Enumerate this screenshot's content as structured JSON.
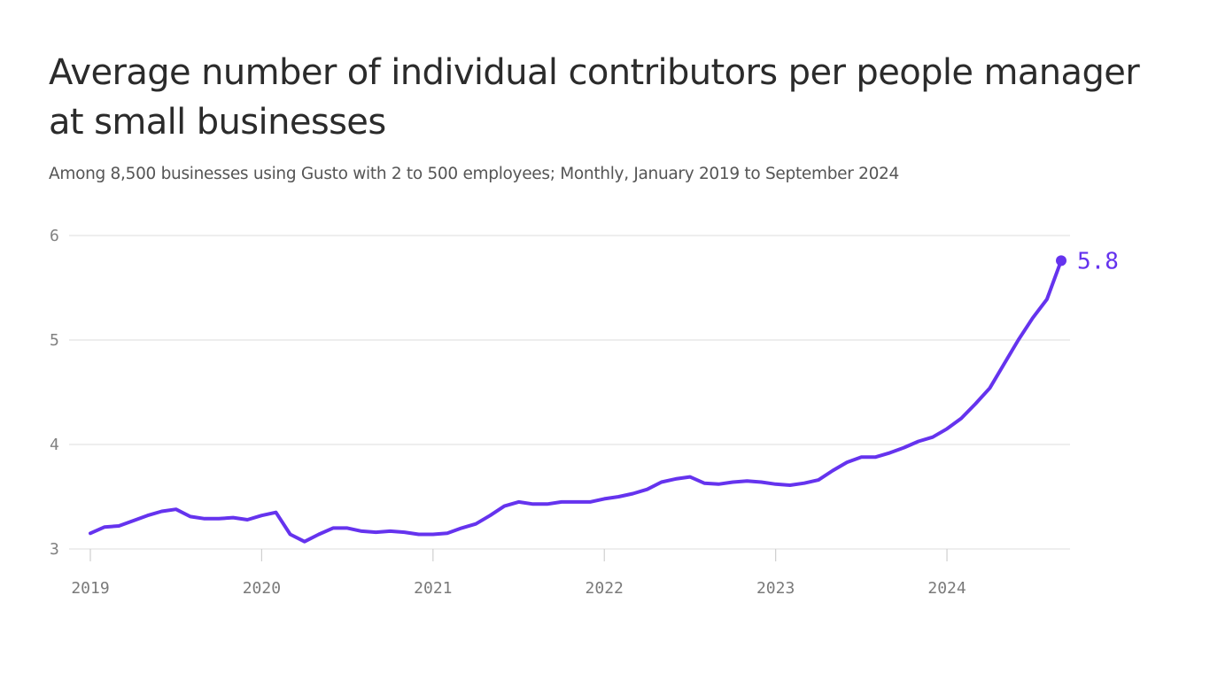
{
  "chart_data": {
    "type": "line",
    "title": "Average number of individual contributors per people manager at small businesses",
    "subtitle": "Among 8,500 businesses using Gusto with 2 to 500 employees; Monthly, January 2019 to September 2024",
    "xlabel": "",
    "ylabel": "",
    "y_ticks": [
      "3",
      "4",
      "5",
      "6"
    ],
    "x_ticks": [
      "2019",
      "2020",
      "2021",
      "2022",
      "2023",
      "2024"
    ],
    "xlim": [
      "2019-01",
      "2024-09"
    ],
    "ylim": [
      3,
      6
    ],
    "grid": true,
    "line_color": "#6533ee",
    "grid_color": "#e3e3e3",
    "end_label": "5.8",
    "series": [
      {
        "name": "",
        "x": [
          "2019-01",
          "2019-02",
          "2019-03",
          "2019-04",
          "2019-05",
          "2019-06",
          "2019-07",
          "2019-08",
          "2019-09",
          "2019-10",
          "2019-11",
          "2019-12",
          "2020-01",
          "2020-02",
          "2020-03",
          "2020-04",
          "2020-05",
          "2020-06",
          "2020-07",
          "2020-08",
          "2020-09",
          "2020-10",
          "2020-11",
          "2020-12",
          "2021-01",
          "2021-02",
          "2021-03",
          "2021-04",
          "2021-05",
          "2021-06",
          "2021-07",
          "2021-08",
          "2021-09",
          "2021-10",
          "2021-11",
          "2021-12",
          "2022-01",
          "2022-02",
          "2022-03",
          "2022-04",
          "2022-05",
          "2022-06",
          "2022-07",
          "2022-08",
          "2022-09",
          "2022-10",
          "2022-11",
          "2022-12",
          "2023-01",
          "2023-02",
          "2023-03",
          "2023-04",
          "2023-05",
          "2023-06",
          "2023-07",
          "2023-08",
          "2023-09",
          "2023-10",
          "2023-11",
          "2023-12",
          "2024-01",
          "2024-02",
          "2024-03",
          "2024-04",
          "2024-05",
          "2024-06",
          "2024-07",
          "2024-08",
          "2024-09"
        ],
        "values": [
          3.15,
          3.21,
          3.22,
          3.27,
          3.32,
          3.36,
          3.38,
          3.31,
          3.29,
          3.29,
          3.3,
          3.28,
          3.32,
          3.35,
          3.14,
          3.07,
          3.14,
          3.2,
          3.2,
          3.17,
          3.16,
          3.17,
          3.16,
          3.14,
          3.14,
          3.15,
          3.2,
          3.24,
          3.32,
          3.41,
          3.45,
          3.43,
          3.43,
          3.45,
          3.45,
          3.45,
          3.48,
          3.5,
          3.53,
          3.57,
          3.64,
          3.67,
          3.69,
          3.63,
          3.62,
          3.64,
          3.65,
          3.64,
          3.62,
          3.61,
          3.63,
          3.66,
          3.75,
          3.83,
          3.88,
          3.88,
          3.92,
          3.97,
          4.03,
          4.07,
          4.15,
          4.25,
          4.39,
          4.54,
          4.77,
          5.0,
          5.21,
          5.39,
          5.76
        ]
      }
    ]
  }
}
